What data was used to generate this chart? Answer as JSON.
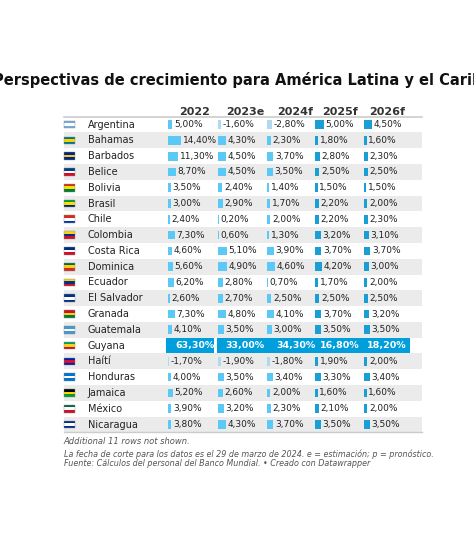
{
  "title": "Perspectivas de crecimiento para América Latina y el Caribe",
  "columns": [
    "2022",
    "2023e",
    "2024f",
    "2025f",
    "2026f"
  ],
  "rows": [
    {
      "country": "Argentina",
      "flag_colors": [
        "#74acdf",
        "#ffffff",
        "#74acdf"
      ],
      "values": [
        5.0,
        -1.6,
        -2.8,
        5.0,
        4.5
      ]
    },
    {
      "country": "Bahamas",
      "flag_colors": [
        "#00778b",
        "#ffd100",
        "#00778b"
      ],
      "values": [
        14.4,
        4.3,
        2.3,
        1.8,
        1.6
      ]
    },
    {
      "country": "Barbados",
      "flag_colors": [
        "#00267f",
        "#ffc726",
        "#00267f"
      ],
      "values": [
        11.3,
        4.5,
        3.7,
        2.8,
        2.3
      ]
    },
    {
      "country": "Belice",
      "flag_colors": [
        "#003f87",
        "#ffffff",
        "#ce1126"
      ],
      "values": [
        8.7,
        4.5,
        3.5,
        2.5,
        2.5
      ]
    },
    {
      "country": "Bolivia",
      "flag_colors": [
        "#d52b1e",
        "#f4e400",
        "#007a3d"
      ],
      "values": [
        3.5,
        2.4,
        1.4,
        1.5,
        1.5
      ]
    },
    {
      "country": "Brasil",
      "flag_colors": [
        "#009c3b",
        "#ffdf00",
        "#002776"
      ],
      "values": [
        3.0,
        2.9,
        1.7,
        2.2,
        2.0
      ]
    },
    {
      "country": "Chile",
      "flag_colors": [
        "#d52b1e",
        "#ffffff",
        "#0039a6"
      ],
      "values": [
        2.4,
        0.2,
        2.0,
        2.2,
        2.3
      ]
    },
    {
      "country": "Colombia",
      "flag_colors": [
        "#fcd116",
        "#003087",
        "#ce1126"
      ],
      "values": [
        7.3,
        0.6,
        1.3,
        3.2,
        3.1
      ]
    },
    {
      "country": "Costa Rica",
      "flag_colors": [
        "#002b7f",
        "#ffffff",
        "#ce1126"
      ],
      "values": [
        4.6,
        5.1,
        3.9,
        3.7,
        3.7
      ]
    },
    {
      "country": "Dominica",
      "flag_colors": [
        "#006b3f",
        "#fcd116",
        "#d52b1e"
      ],
      "values": [
        5.6,
        4.9,
        4.6,
        4.2,
        3.0
      ]
    },
    {
      "country": "Ecuador",
      "flag_colors": [
        "#fcd116",
        "#003087",
        "#ce1126"
      ],
      "values": [
        6.2,
        2.8,
        0.7,
        1.7,
        2.0
      ]
    },
    {
      "country": "El Salvador",
      "flag_colors": [
        "#003087",
        "#ffffff",
        "#003087"
      ],
      "values": [
        2.6,
        2.7,
        2.5,
        2.5,
        2.5
      ]
    },
    {
      "country": "Granada",
      "flag_colors": [
        "#ce1126",
        "#fcd116",
        "#007a3d"
      ],
      "values": [
        7.3,
        4.8,
        4.1,
        3.7,
        3.2
      ]
    },
    {
      "country": "Guatemala",
      "flag_colors": [
        "#4997d0",
        "#ffffff",
        "#4997d0"
      ],
      "values": [
        4.1,
        3.5,
        3.0,
        3.5,
        3.5
      ]
    },
    {
      "country": "Guyana",
      "flag_colors": [
        "#009e60",
        "#fcd116",
        "#ce1126"
      ],
      "values": [
        63.3,
        33.0,
        34.3,
        16.8,
        18.2
      ]
    },
    {
      "country": "Haítí",
      "flag_colors": [
        "#00209f",
        "#d21034",
        "#00209f"
      ],
      "values": [
        -1.7,
        -1.9,
        -1.8,
        1.9,
        2.0
      ]
    },
    {
      "country": "Honduras",
      "flag_colors": [
        "#0073cf",
        "#ffffff",
        "#0073cf"
      ],
      "values": [
        4.0,
        3.5,
        3.4,
        3.3,
        3.4
      ]
    },
    {
      "country": "Jamaica",
      "flag_colors": [
        "#000000",
        "#ffd700",
        "#009b3a"
      ],
      "values": [
        5.2,
        2.6,
        2.0,
        1.6,
        1.6
      ]
    },
    {
      "country": "México",
      "flag_colors": [
        "#006847",
        "#ffffff",
        "#ce1126"
      ],
      "values": [
        3.9,
        3.2,
        2.3,
        2.1,
        2.0
      ]
    },
    {
      "country": "Nicaragua",
      "flag_colors": [
        "#003087",
        "#ffffff",
        "#003087"
      ],
      "values": [
        3.8,
        4.3,
        3.7,
        3.5,
        3.5
      ]
    }
  ],
  "footnote1": "Additional 11 rows not shown.",
  "footnote2": "La fecha de corte para los datos es el 29 de marzo de 2024. e = estimación; p = pronóstico.",
  "footnote3": "Fuente: Cálculos del personal del Banco Mundial. • Creado con Datawrapper",
  "bg_color": "#ffffff",
  "row_alt_color": "#ebebeb",
  "bar_color_col0": "#5bc8f5",
  "bar_color_col1": "#5bc8f5",
  "bar_color_col2": "#5bc8f5",
  "bar_color_col3": "#1a9fd4",
  "bar_color_col4": "#1a9fd4",
  "bar_color_neg": "#b0d8ee",
  "guyana_bar_color": "#009edb",
  "text_color": "#222222",
  "header_color": "#333333",
  "title_color": "#111111",
  "sep_color": "#cccccc",
  "footnote_color": "#555555"
}
